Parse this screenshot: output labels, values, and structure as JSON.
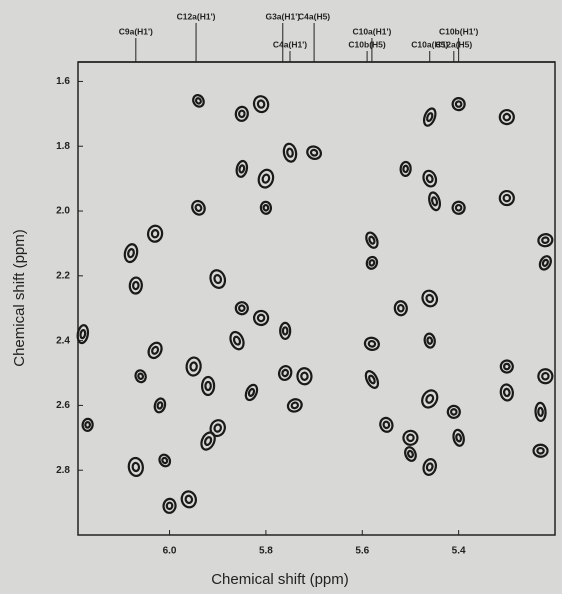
{
  "chart_data": {
    "type": "scatter",
    "x_label": "Chemical shift (ppm)",
    "y_label": "Chemical shift (ppm)",
    "xlim": [
      6.19,
      5.2
    ],
    "ylim": [
      1.54,
      3.0
    ],
    "xticks": [
      {
        "value": 6,
        "label": "6.0"
      },
      5.8,
      5.6,
      5.4
    ],
    "yticks": [
      1.6,
      1.8,
      {
        "value": 2,
        "label": "2.0"
      },
      2.2,
      2.4,
      2.6,
      2.8
    ],
    "color": "#1a1a1a",
    "annotations": [
      {
        "text": "C9a(H1')",
        "x": 6.07
      },
      {
        "text": "C12a(H1')",
        "x": 5.945
      },
      {
        "text": "G3a(H1')",
        "x": 5.765
      },
      {
        "text": "C4a(H5)",
        "x": 5.7
      },
      {
        "text": "C4a(H1')",
        "x": 5.75
      },
      {
        "text": "C10b(H5)",
        "x": 5.59
      },
      {
        "text": "C10a(H1')",
        "x": 5.58
      },
      {
        "text": "C10a(H5)",
        "x": 5.46
      },
      {
        "text": "C10b(H1')",
        "x": 5.4
      },
      {
        "text": "C12a(H5)",
        "x": 5.41
      }
    ],
    "x": [
      5.94,
      5.85,
      5.81,
      5.46,
      5.4,
      5.3,
      5.85,
      5.75,
      5.7,
      5.51,
      5.46,
      5.8,
      5.8,
      5.94,
      6.03,
      5.45,
      5.4,
      5.3,
      5.58,
      6.08,
      5.22,
      5.22,
      6.07,
      5.9,
      5.58,
      5.52,
      5.46,
      6.18,
      5.85,
      5.81,
      5.76,
      5.86,
      5.58,
      5.46,
      6.03,
      5.95,
      6.06,
      5.76,
      5.72,
      5.58,
      5.3,
      5.22,
      5.83,
      5.92,
      5.74,
      6.02,
      5.3,
      5.46,
      6.17,
      5.55,
      5.9,
      5.23,
      5.41,
      5.5,
      5.4,
      5.92,
      5.23,
      5.5,
      5.46,
      6.07,
      6.01,
      6.0,
      5.96
    ],
    "values": [
      1.66,
      1.7,
      1.67,
      1.71,
      1.67,
      1.71,
      1.87,
      1.82,
      1.82,
      1.87,
      1.9,
      1.9,
      1.99,
      1.99,
      2.07,
      1.97,
      1.99,
      1.96,
      2.09,
      2.13,
      2.09,
      2.16,
      2.23,
      2.21,
      2.16,
      2.3,
      2.27,
      2.38,
      2.3,
      2.33,
      2.37,
      2.4,
      2.41,
      2.4,
      2.43,
      2.48,
      2.51,
      2.5,
      2.51,
      2.52,
      2.48,
      2.51,
      2.56,
      2.54,
      2.6,
      2.6,
      2.56,
      2.58,
      2.66,
      2.66,
      2.67,
      2.62,
      2.62,
      2.7,
      2.7,
      2.71,
      2.74,
      2.75,
      2.79,
      2.79,
      2.77,
      2.91,
      2.89
    ]
  }
}
